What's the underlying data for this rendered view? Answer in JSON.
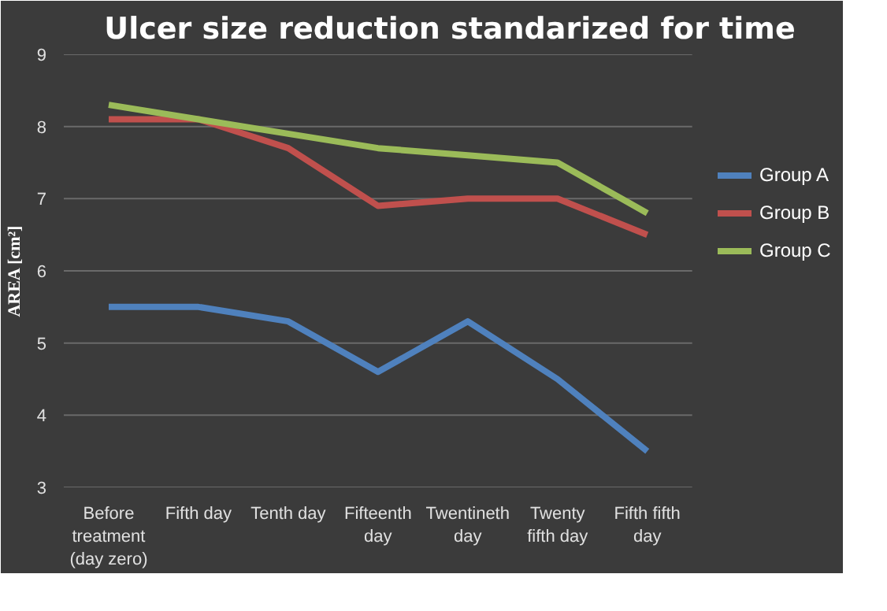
{
  "chart_data": {
    "type": "line",
    "title": "Ulcer size reduction standarized for time",
    "ylabel": "AREA [cm²]",
    "categories": [
      "Before treatment (day zero)",
      "Fifth day",
      "Tenth day",
      "Fifteenth day",
      "Twentineth day",
      "Twenty fifth day",
      "Fifth fifth day"
    ],
    "series": [
      {
        "name": "Group A",
        "color": "#4f81bd",
        "values": [
          5.5,
          5.5,
          5.3,
          4.6,
          5.3,
          4.5,
          3.5
        ]
      },
      {
        "name": "Group B",
        "color": "#c0504d",
        "values": [
          8.1,
          8.1,
          7.7,
          6.9,
          7.0,
          7.0,
          6.5
        ]
      },
      {
        "name": "Group C",
        "color": "#9bbb59",
        "values": [
          8.3,
          8.1,
          7.9,
          7.7,
          7.6,
          7.5,
          6.8
        ]
      }
    ],
    "ylim": [
      3,
      9
    ],
    "yticks": [
      3,
      4,
      5,
      6,
      7,
      8,
      9
    ],
    "grid": "y",
    "legend": "right",
    "marker": "none",
    "line_style": "solid"
  }
}
